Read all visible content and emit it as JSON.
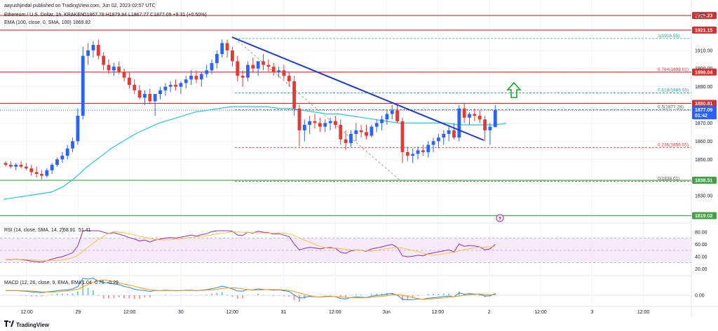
{
  "header": {
    "publisher": "aayushjindal published on TradingView.com, Jun 02, 2023 02:57 UTC",
    "symbol": "Ethereum / U.S. Dollar, 1h, KRAKEN",
    "ohlc": "O1867.78 H1879.84 L1867.77 C1877.09 +9.31 (+0.50%)",
    "ema_legend": "EMA (100, close, 0, SMA, 100)",
    "ema_value": "1869.82",
    "currency": "USD"
  },
  "footer": {
    "brand": "TradingView"
  },
  "colors": {
    "up": "#2962ff",
    "down": "#e53935",
    "ema": "#26c6da",
    "resistance": "#d32f2f",
    "support": "#43a047",
    "trendline": "#1e3bd8",
    "fib": "#999999",
    "arrow": "#1fa32e",
    "rsi": "#9c27b0",
    "rsi_ma": "#fbc02d",
    "macd": "#1e88e5",
    "macd_signal": "#ff9800"
  },
  "chart_data": {
    "type": "candlestick",
    "y_range": [
      1820,
      1930
    ],
    "y_ticks": [
      "1910.00",
      "1900.00",
      "1890.00",
      "1870.00",
      "1860.00",
      "1850.00",
      "1830.00"
    ],
    "x_labels": [
      "12:00",
      "29",
      "12:00",
      "30",
      "12:00",
      "31",
      "12:00",
      "Jun",
      "12:00",
      "2",
      "12:00",
      "3",
      "12:00"
    ],
    "candles": [
      [
        1848,
        1849,
        1846,
        1847
      ],
      [
        1847,
        1849,
        1845,
        1846
      ],
      [
        1846,
        1848,
        1844,
        1847
      ],
      [
        1847,
        1849,
        1845,
        1846
      ],
      [
        1846,
        1848,
        1844,
        1845
      ],
      [
        1845,
        1847,
        1841,
        1843
      ],
      [
        1843,
        1846,
        1840,
        1842
      ],
      [
        1842,
        1844,
        1839,
        1841
      ],
      [
        1841,
        1845,
        1840,
        1844
      ],
      [
        1844,
        1848,
        1842,
        1847
      ],
      [
        1847,
        1851,
        1846,
        1850
      ],
      [
        1850,
        1854,
        1848,
        1852
      ],
      [
        1852,
        1858,
        1850,
        1856
      ],
      [
        1856,
        1862,
        1854,
        1860
      ],
      [
        1860,
        1878,
        1858,
        1874
      ],
      [
        1874,
        1912,
        1872,
        1907
      ],
      [
        1907,
        1914,
        1902,
        1910
      ],
      [
        1910,
        1915,
        1906,
        1913
      ],
      [
        1913,
        1916,
        1905,
        1907
      ],
      [
        1907,
        1909,
        1899,
        1902
      ],
      [
        1902,
        1905,
        1897,
        1899
      ],
      [
        1899,
        1903,
        1896,
        1901
      ],
      [
        1901,
        1904,
        1897,
        1898
      ],
      [
        1898,
        1900,
        1893,
        1895
      ],
      [
        1895,
        1898,
        1889,
        1891
      ],
      [
        1891,
        1894,
        1886,
        1888
      ],
      [
        1888,
        1891,
        1883,
        1884
      ],
      [
        1884,
        1888,
        1880,
        1886
      ],
      [
        1886,
        1889,
        1881,
        1882
      ],
      [
        1882,
        1885,
        1874,
        1886
      ],
      [
        1886,
        1890,
        1883,
        1888
      ],
      [
        1888,
        1892,
        1885,
        1890
      ],
      [
        1890,
        1893,
        1887,
        1891
      ],
      [
        1891,
        1894,
        1888,
        1890
      ],
      [
        1890,
        1893,
        1886,
        1892
      ],
      [
        1892,
        1896,
        1889,
        1894
      ],
      [
        1894,
        1899,
        1891,
        1896
      ],
      [
        1896,
        1899,
        1892,
        1894
      ],
      [
        1894,
        1898,
        1890,
        1897
      ],
      [
        1897,
        1902,
        1895,
        1899
      ],
      [
        1899,
        1905,
        1897,
        1903
      ],
      [
        1903,
        1910,
        1900,
        1908
      ],
      [
        1908,
        1916,
        1906,
        1914
      ],
      [
        1914,
        1916,
        1906,
        1910
      ],
      [
        1910,
        1912,
        1901,
        1904
      ],
      [
        1904,
        1907,
        1893,
        1896
      ],
      [
        1896,
        1899,
        1890,
        1895
      ],
      [
        1895,
        1904,
        1893,
        1902
      ],
      [
        1902,
        1906,
        1898,
        1900
      ],
      [
        1900,
        1903,
        1896,
        1904
      ],
      [
        1904,
        1908,
        1899,
        1902
      ],
      [
        1902,
        1905,
        1898,
        1901
      ],
      [
        1901,
        1903,
        1896,
        1898
      ],
      [
        1898,
        1901,
        1895,
        1899
      ],
      [
        1899,
        1902,
        1894,
        1896
      ],
      [
        1896,
        1898,
        1890,
        1893
      ],
      [
        1893,
        1896,
        1874,
        1878
      ],
      [
        1878,
        1880,
        1857,
        1866
      ],
      [
        1866,
        1872,
        1860,
        1869
      ],
      [
        1869,
        1874,
        1864,
        1871
      ],
      [
        1871,
        1875,
        1867,
        1870
      ],
      [
        1870,
        1873,
        1865,
        1868
      ],
      [
        1868,
        1872,
        1865,
        1870
      ],
      [
        1870,
        1873,
        1866,
        1871
      ],
      [
        1871,
        1874,
        1867,
        1869
      ],
      [
        1869,
        1872,
        1858,
        1861
      ],
      [
        1861,
        1866,
        1855,
        1859
      ],
      [
        1859,
        1866,
        1857,
        1864
      ],
      [
        1864,
        1870,
        1860,
        1866
      ],
      [
        1866,
        1869,
        1862,
        1865
      ],
      [
        1865,
        1869,
        1861,
        1863
      ],
      [
        1863,
        1869,
        1862,
        1868
      ],
      [
        1868,
        1872,
        1865,
        1870
      ],
      [
        1870,
        1874,
        1866,
        1872
      ],
      [
        1872,
        1877,
        1869,
        1875
      ],
      [
        1875,
        1880,
        1872,
        1877
      ],
      [
        1877,
        1880,
        1870,
        1871
      ],
      [
        1871,
        1873,
        1848,
        1854
      ],
      [
        1854,
        1857,
        1849,
        1852
      ],
      [
        1852,
        1856,
        1848,
        1853
      ],
      [
        1853,
        1857,
        1850,
        1855
      ],
      [
        1855,
        1858,
        1852,
        1854
      ],
      [
        1854,
        1860,
        1851,
        1858
      ],
      [
        1858,
        1862,
        1854,
        1860
      ],
      [
        1860,
        1864,
        1856,
        1862
      ],
      [
        1862,
        1866,
        1858,
        1864
      ],
      [
        1864,
        1868,
        1860,
        1866
      ],
      [
        1866,
        1870,
        1861,
        1862
      ],
      [
        1862,
        1880,
        1860,
        1878
      ],
      [
        1878,
        1881,
        1870,
        1873
      ],
      [
        1873,
        1876,
        1869,
        1875
      ],
      [
        1875,
        1878,
        1871,
        1874
      ],
      [
        1874,
        1877,
        1870,
        1872
      ],
      [
        1872,
        1874,
        1860,
        1866
      ],
      [
        1866,
        1870,
        1858,
        1868
      ],
      [
        1867.78,
        1879.84,
        1867.77,
        1877.09
      ]
    ],
    "ema": [
      1828,
      1829,
      1830,
      1831,
      1832,
      1835,
      1840,
      1846,
      1851,
      1856,
      1860,
      1864,
      1867,
      1870,
      1872,
      1874,
      1876,
      1877,
      1878,
      1879,
      1879,
      1879,
      1879,
      1878,
      1878,
      1877,
      1876,
      1875,
      1875,
      1874,
      1873,
      1872,
      1871,
      1870,
      1870,
      1870,
      1870,
      1870,
      1869,
      1869,
      1869,
      1869,
      1869.82
    ],
    "levels": [
      {
        "label": "1929.23",
        "value": 1929.2,
        "color": "#d32f2f",
        "kind": "resistance"
      },
      {
        "label": "1921.15",
        "value": 1921.15,
        "color": "#d32f2f",
        "kind": "resistance"
      },
      {
        "label": "1898.04",
        "value": 1898.04,
        "color": "#d32f2f",
        "kind": "resistance"
      },
      {
        "label": "1880.81",
        "value": 1880.81,
        "color": "#d32f2f",
        "kind": "resistance"
      },
      {
        "label": "1838.51",
        "value": 1838.51,
        "color": "#43a047",
        "kind": "support"
      },
      {
        "label": "1819.02",
        "value": 1819.02,
        "color": "#43a047",
        "kind": "support"
      }
    ],
    "fib": [
      {
        "label": "1(1916.55)",
        "value": 1916.55,
        "color": "#26a69a"
      },
      {
        "label": "0.764(1898.01)",
        "value": 1898.01,
        "color": "#e53935"
      },
      {
        "label": "0.618(1886.55)",
        "value": 1886.55,
        "color": "#26a69a"
      },
      {
        "label": "0.5(1877.28)",
        "value": 1877.28,
        "color": "#555555"
      },
      {
        "label": "0.236(1856.55)",
        "value": 1856.55,
        "color": "#e53935"
      },
      {
        "label": "0(1838.01)",
        "value": 1838.01,
        "color": "#555555"
      }
    ],
    "price_tag": {
      "value": "1877.09",
      "countdown": "01:42"
    },
    "rsi": {
      "legend": "RSI (14, close, SMA, 14, 2)",
      "value1": "58.91",
      "value2": "51.41",
      "y_ticks": [
        "80.00",
        "60.00",
        "40.00",
        "20.00"
      ]
    },
    "macd": {
      "legend": "MACD (12, 26, close, 9, EMA, EMA)",
      "value1": "1.04",
      "value2": "0.76",
      "value3": "-0.29",
      "y_ticks": [
        "0.00"
      ]
    }
  }
}
